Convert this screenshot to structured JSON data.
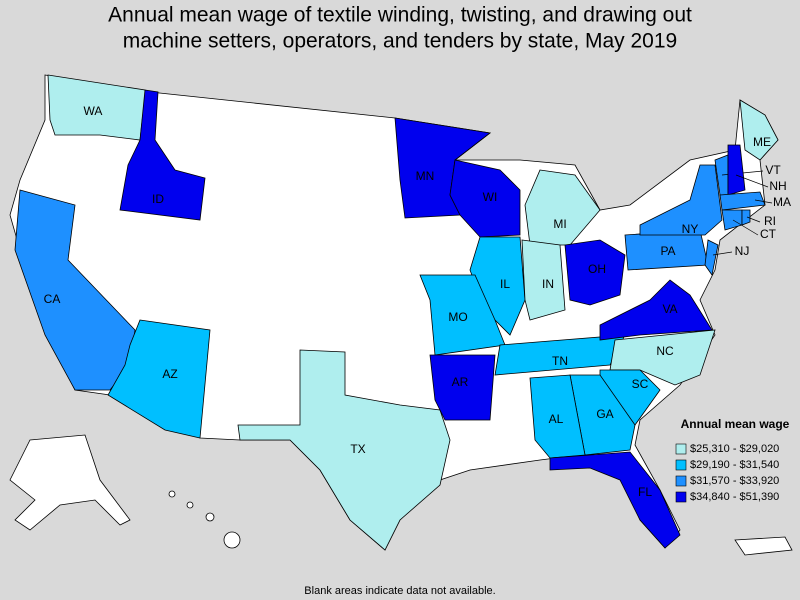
{
  "title_lines": [
    "Annual mean wage of textile winding, twisting, and drawing out",
    "machine setters, operators, and tenders by state, May 2019"
  ],
  "states": [
    {
      "label": "WA",
      "color": "#afeeee"
    },
    {
      "label": "ID",
      "color": "#0000ee"
    },
    {
      "label": "CA",
      "color": "#1e90ff"
    },
    {
      "label": "AZ",
      "color": "#00bfff"
    },
    {
      "label": "TX",
      "color": "#afeeee"
    },
    {
      "label": "MN",
      "color": "#0000ee"
    },
    {
      "label": "WI",
      "color": "#0000ee"
    },
    {
      "label": "MI",
      "color": "#afeeee"
    },
    {
      "label": "IL",
      "color": "#00bfff"
    },
    {
      "label": "IN",
      "color": "#afeeee"
    },
    {
      "label": "OH",
      "color": "#0000ee"
    },
    {
      "label": "MO",
      "color": "#00bfff"
    },
    {
      "label": "AR",
      "color": "#0000ee"
    },
    {
      "label": "TN",
      "color": "#00bfff"
    },
    {
      "label": "NC",
      "color": "#afeeee"
    },
    {
      "label": "SC",
      "color": "#00bfff"
    },
    {
      "label": "GA",
      "color": "#00bfff"
    },
    {
      "label": "AL",
      "color": "#00bfff"
    },
    {
      "label": "FL",
      "color": "#0000ee"
    },
    {
      "label": "VA",
      "color": "#0000ee"
    },
    {
      "label": "PA",
      "color": "#1e90ff"
    },
    {
      "label": "NY",
      "color": "#1e90ff"
    },
    {
      "label": "ME",
      "color": "#afeeee"
    },
    {
      "label": "VT",
      "color": "#1e90ff"
    },
    {
      "label": "NH",
      "color": "#0000ee"
    },
    {
      "label": "MA",
      "color": "#1e90ff"
    },
    {
      "label": "CT",
      "color": "#1e90ff"
    },
    {
      "label": "RI",
      "color": "#1e90ff"
    },
    {
      "label": "NJ",
      "color": "#1e90ff"
    }
  ],
  "legend": {
    "title": "Annual mean wage",
    "items": [
      {
        "label": "$25,310 - $29,020",
        "color": "#afeeee"
      },
      {
        "label": "$29,190 - $31,540",
        "color": "#00bfff"
      },
      {
        "label": "$31,570 - $33,920",
        "color": "#1e90ff"
      },
      {
        "label": "$34,840 - $51,390",
        "color": "#0000ee"
      }
    ]
  },
  "footnote": "Blank areas indicate data not available."
}
